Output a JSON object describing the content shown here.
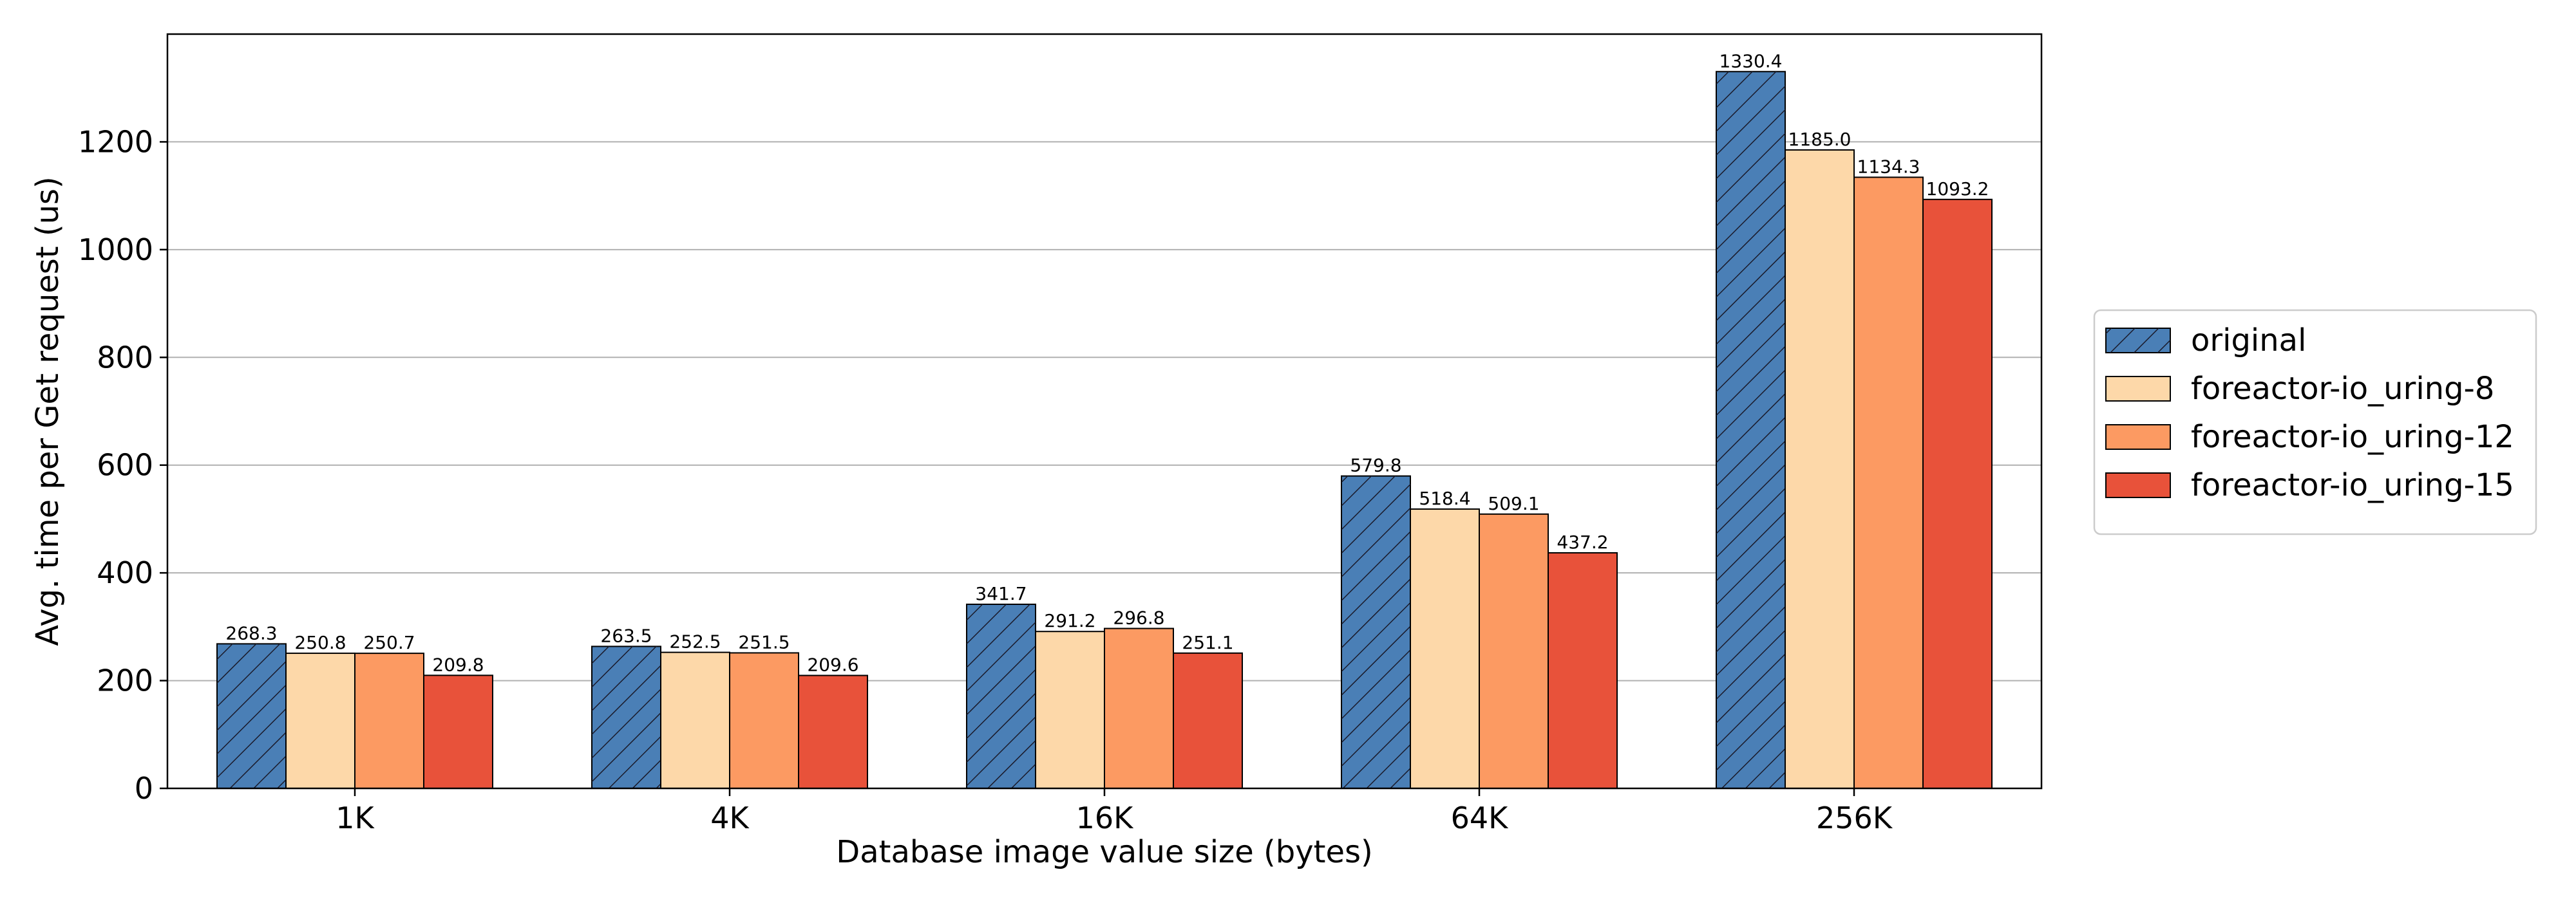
{
  "chart_data": {
    "type": "bar",
    "xlabel": "Database image value size (bytes)",
    "ylabel": "Avg. time per Get request (us)",
    "categories": [
      "1K",
      "4K",
      "16K",
      "64K",
      "256K"
    ],
    "ylim": [
      0,
      1400
    ],
    "yticks": [
      0,
      200,
      400,
      600,
      800,
      1000,
      1200
    ],
    "grid": "horizontal",
    "legend_position": "right",
    "series": [
      {
        "name": "original",
        "color": "#4a7fb6",
        "hatch": "diagonal",
        "values": [
          268.3,
          263.5,
          341.7,
          579.8,
          1330.4
        ],
        "labels": [
          "268.3",
          "263.5",
          "341.7",
          "579.8",
          "1330.4"
        ]
      },
      {
        "name": "foreactor-io_uring-8",
        "color": "#fdd8a9",
        "hatch": "none",
        "values": [
          250.8,
          252.5,
          291.2,
          518.4,
          1185.0
        ],
        "labels": [
          "250.8",
          "252.5",
          "291.2",
          "518.4",
          "1185.0"
        ]
      },
      {
        "name": "foreactor-io_uring-12",
        "color": "#fc9a62",
        "hatch": "none",
        "values": [
          250.7,
          251.5,
          296.8,
          509.1,
          1134.3
        ],
        "labels": [
          "250.7",
          "251.5",
          "296.8",
          "509.1",
          "1134.3"
        ]
      },
      {
        "name": "foreactor-io_uring-15",
        "color": "#e8523a",
        "hatch": "none",
        "values": [
          209.8,
          209.6,
          251.1,
          437.2,
          1093.2
        ],
        "labels": [
          "209.8",
          "209.6",
          "251.1",
          "437.2",
          "1093.2"
        ]
      }
    ]
  }
}
